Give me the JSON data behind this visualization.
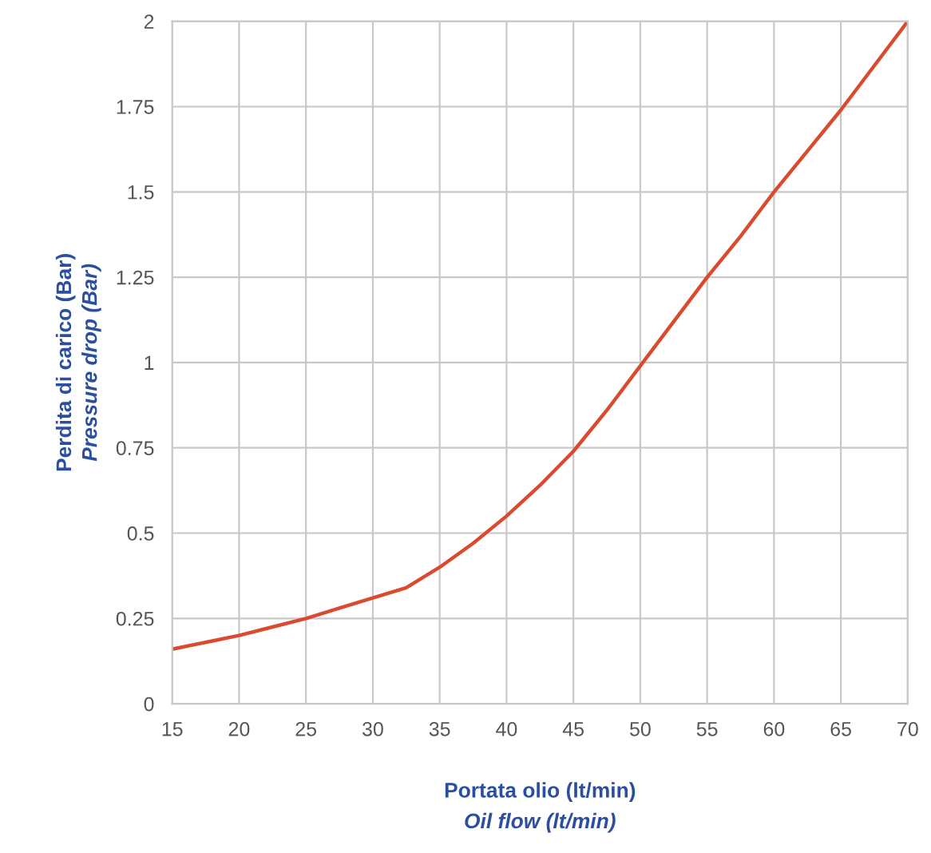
{
  "chart_data": {
    "type": "line",
    "xlabel": "Portata olio (lt/min)\nOil flow (lt/min)",
    "ylabel": "Perdita di carico (Bar)\nPressure drop (Bar)",
    "series": [
      {
        "color": "#d94a2e",
        "x": [
          15,
          17.5,
          20,
          22.5,
          25,
          27.5,
          30,
          32.5,
          35,
          37.5,
          40,
          42.5,
          45,
          47.5,
          50,
          52.5,
          55,
          57.5,
          60,
          62.5,
          65,
          67.5,
          70
        ],
        "values": [
          0.16,
          0.18,
          0.2,
          0.225,
          0.25,
          0.28,
          0.31,
          0.34,
          0.4,
          0.47,
          0.55,
          0.64,
          0.74,
          0.86,
          0.99,
          1.12,
          1.25,
          1.37,
          1.5,
          1.62,
          1.74,
          1.87,
          2.0
        ]
      }
    ],
    "xlim": [
      15,
      70
    ],
    "xticks": [
      15,
      20,
      25,
      30,
      35,
      40,
      45,
      50,
      55,
      60,
      65,
      70
    ],
    "ylim": [
      0,
      2
    ],
    "yticks": [
      0,
      0.25,
      0.5,
      0.75,
      1,
      1.25,
      1.5,
      1.75,
      2
    ],
    "grid": true,
    "line_style": "solid",
    "marker": "none"
  }
}
